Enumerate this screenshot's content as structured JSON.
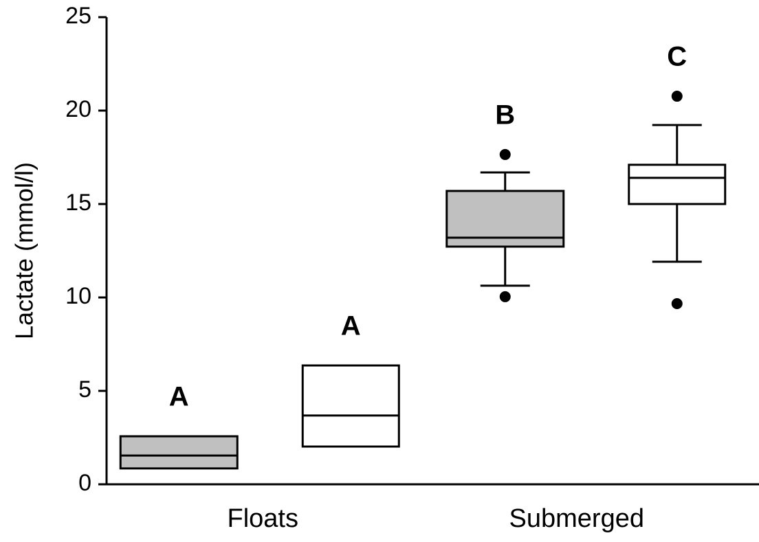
{
  "chart_data": {
    "type": "box",
    "y_label": "Lactate (mmol/l)",
    "categories": [
      "Floats",
      "Submerged"
    ],
    "ylim": [
      0,
      25
    ],
    "yticks": [
      0,
      5,
      10,
      15,
      20,
      25
    ],
    "series": [
      {
        "color": "#c0c0c0",
        "boxes": [
          {
            "q1": 0.85,
            "median": 1.54,
            "q3": 2.57,
            "label": "A"
          },
          {
            "q1": 12.72,
            "median": 13.2,
            "q3": 15.7,
            "whisker_low": 10.63,
            "whisker_high": 16.69,
            "outliers": [
              17.65,
              10.04
            ],
            "label": "B"
          }
        ]
      },
      {
        "color": "#ffffff",
        "boxes": [
          {
            "q1": 2.02,
            "median": 3.68,
            "q3": 6.36,
            "label": "A"
          },
          {
            "q1": 15.0,
            "median": 16.4,
            "q3": 17.1,
            "whisker_low": 11.91,
            "whisker_high": 19.23,
            "outliers": [
              20.77,
              9.67
            ],
            "label": "C"
          }
        ]
      }
    ]
  }
}
